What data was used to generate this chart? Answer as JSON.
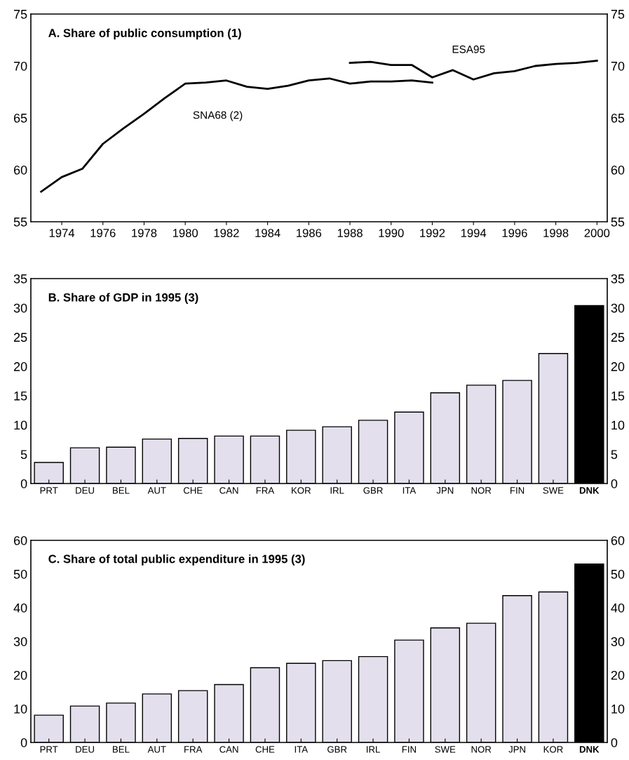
{
  "chart_data": [
    {
      "type": "line",
      "title": "A. Share of public consumption (1)",
      "grid": false,
      "legend": false,
      "line_style": "solid",
      "marker": "none",
      "xlim": [
        1972.5,
        2000.5
      ],
      "xticks": [
        1974,
        1976,
        1978,
        1980,
        1982,
        1984,
        1986,
        1988,
        1990,
        1992,
        1994,
        1996,
        1998,
        2000
      ],
      "ylim": [
        55,
        75
      ],
      "yticks": [
        55,
        60,
        65,
        70,
        75
      ],
      "y2lim": [
        55,
        75
      ],
      "y2ticks": [
        55,
        60,
        65,
        70,
        75
      ],
      "series": [
        {
          "name": "SNA68 (2)",
          "color": "#000000",
          "x": [
            1973,
            1974,
            1975,
            1976,
            1977,
            1978,
            1979,
            1980,
            1981,
            1982,
            1983,
            1984,
            1985,
            1986,
            1987,
            1988,
            1989,
            1990,
            1991,
            1992
          ],
          "values": [
            57.9,
            59.3,
            60.1,
            62.5,
            64.0,
            65.4,
            66.9,
            68.3,
            68.4,
            68.6,
            68.0,
            67.8,
            68.1,
            68.6,
            68.8,
            68.3,
            68.5,
            68.5,
            68.6,
            68.4
          ]
        },
        {
          "name": "ESA95",
          "color": "#000000",
          "x": [
            1988,
            1989,
            1990,
            1991,
            1992,
            1993,
            1994,
            1995,
            1996,
            1997,
            1998,
            1999,
            2000
          ],
          "values": [
            70.3,
            70.4,
            70.1,
            70.1,
            68.9,
            69.6,
            68.7,
            69.3,
            69.5,
            70.0,
            70.2,
            70.3,
            70.5
          ]
        }
      ]
    },
    {
      "type": "bar",
      "title": "B. Share of GDP in 1995 (3)",
      "grid": false,
      "legend": false,
      "categories": [
        "PRT",
        "DEU",
        "BEL",
        "AUT",
        "CHE",
        "CAN",
        "FRA",
        "KOR",
        "IRL",
        "GBR",
        "ITA",
        "JPN",
        "NOR",
        "FIN",
        "SWE",
        "DNK"
      ],
      "values": [
        3.6,
        6.1,
        6.2,
        7.6,
        7.7,
        8.1,
        8.1,
        9.1,
        9.7,
        10.8,
        12.2,
        15.5,
        16.8,
        17.6,
        22.2,
        30.4
      ],
      "colors": [
        "#e3dfec",
        "#e3dfec",
        "#e3dfec",
        "#e3dfec",
        "#e3dfec",
        "#e3dfec",
        "#e3dfec",
        "#e3dfec",
        "#e3dfec",
        "#e3dfec",
        "#e3dfec",
        "#e3dfec",
        "#e3dfec",
        "#e3dfec",
        "#e3dfec",
        "#000000"
      ],
      "ylim": [
        0,
        35
      ],
      "yticks": [
        0,
        5,
        10,
        15,
        20,
        25,
        30,
        35
      ],
      "y2lim": [
        0,
        35
      ],
      "y2ticks": [
        0,
        5,
        10,
        15,
        20,
        25,
        30,
        35
      ]
    },
    {
      "type": "bar",
      "title": "C. Share of total public expenditure in 1995 (3)",
      "grid": false,
      "legend": false,
      "categories": [
        "PRT",
        "DEU",
        "BEL",
        "AUT",
        "FRA",
        "CAN",
        "CHE",
        "ITA",
        "GBR",
        "IRL",
        "FIN",
        "SWE",
        "NOR",
        "JPN",
        "KOR",
        "DNK"
      ],
      "values": [
        8.1,
        10.8,
        11.7,
        14.4,
        15.4,
        17.2,
        22.2,
        23.5,
        24.3,
        25.5,
        30.4,
        34.0,
        35.4,
        43.6,
        44.7,
        53.0
      ],
      "colors": [
        "#e3dfec",
        "#e3dfec",
        "#e3dfec",
        "#e3dfec",
        "#e3dfec",
        "#e3dfec",
        "#e3dfec",
        "#e3dfec",
        "#e3dfec",
        "#e3dfec",
        "#e3dfec",
        "#e3dfec",
        "#e3dfec",
        "#e3dfec",
        "#e3dfec",
        "#000000"
      ],
      "ylim": [
        0,
        60
      ],
      "yticks": [
        0,
        10,
        20,
        30,
        40,
        50,
        60
      ],
      "y2lim": [
        0,
        60
      ],
      "y2ticks": [
        0,
        10,
        20,
        30,
        40,
        50,
        60
      ]
    }
  ]
}
